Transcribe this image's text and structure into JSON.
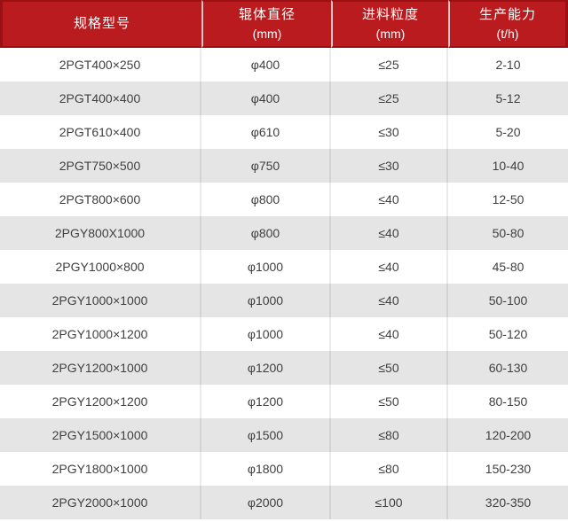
{
  "chart_data": {
    "type": "table",
    "columns": [
      {
        "title": "规格型号",
        "unit": ""
      },
      {
        "title": "辊体直径",
        "unit": "(mm)"
      },
      {
        "title": "进料粒度",
        "unit": "(mm)"
      },
      {
        "title": "生产能力",
        "unit": "(t/h)"
      }
    ],
    "rows": [
      [
        "2PGT400×250",
        "φ400",
        "≤25",
        "2-10"
      ],
      [
        "2PGT400×400",
        "φ400",
        "≤25",
        "5-12"
      ],
      [
        "2PGT610×400",
        "φ610",
        "≤30",
        "5-20"
      ],
      [
        "2PGT750×500",
        "φ750",
        "≤30",
        "10-40"
      ],
      [
        "2PGT800×600",
        "φ800",
        "≤40",
        "12-50"
      ],
      [
        "2PGY800X1000",
        "φ800",
        "≤40",
        "50-80"
      ],
      [
        "2PGY1000×800",
        "φ1000",
        "≤40",
        "45-80"
      ],
      [
        "2PGY1000×1000",
        "φ1000",
        "≤40",
        "50-100"
      ],
      [
        "2PGY1000×1200",
        "φ1000",
        "≤40",
        "50-120"
      ],
      [
        "2PGY1200×1000",
        "φ1200",
        "≤50",
        "60-130"
      ],
      [
        "2PGY1200×1200",
        "φ1200",
        "≤50",
        "80-150"
      ],
      [
        "2PGY1500×1000",
        "φ1500",
        "≤80",
        "120-200"
      ],
      [
        "2PGY1800×1000",
        "φ1800",
        "≤80",
        "150-230"
      ],
      [
        "2PGY2000×1000",
        "φ2000",
        "≤100",
        "320-350"
      ]
    ]
  },
  "colors": {
    "header_bg": "#b91b1e",
    "header_border": "#9a1013",
    "header_text": "#ffffff",
    "row_alt_bg": "#e5e5e5",
    "body_text": "#3f3f3f",
    "divider": "#e8e8e8"
  }
}
